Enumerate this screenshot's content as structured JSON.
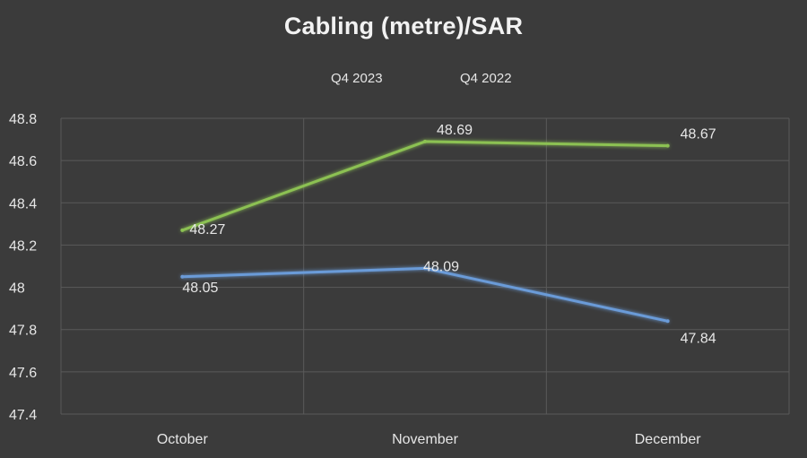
{
  "chart_data": {
    "type": "line",
    "title": "Cabling (metre)/SAR",
    "categories": [
      "October",
      "November",
      "December"
    ],
    "series": [
      {
        "name": "Q4 2023",
        "values": [
          48.27,
          48.69,
          48.67
        ],
        "color": "#8cc152"
      },
      {
        "name": "Q4 2022",
        "values": [
          48.05,
          48.09,
          47.84
        ],
        "color": "#6b9bd8"
      }
    ],
    "ylim": [
      47.4,
      48.8
    ],
    "yticks": [
      "47.4",
      "47.6",
      "47.8",
      "48",
      "48.2",
      "48.4",
      "48.6",
      "48.8"
    ],
    "data_labels": [
      [
        "48.27",
        "48.69",
        "48.67"
      ],
      [
        "48.05",
        "48.09",
        "47.84"
      ]
    ],
    "legend_position": "top",
    "grid": true,
    "background": "#3b3b3b",
    "gridline_color": "#5a5a5a",
    "text_color": "#e6e6e6"
  }
}
